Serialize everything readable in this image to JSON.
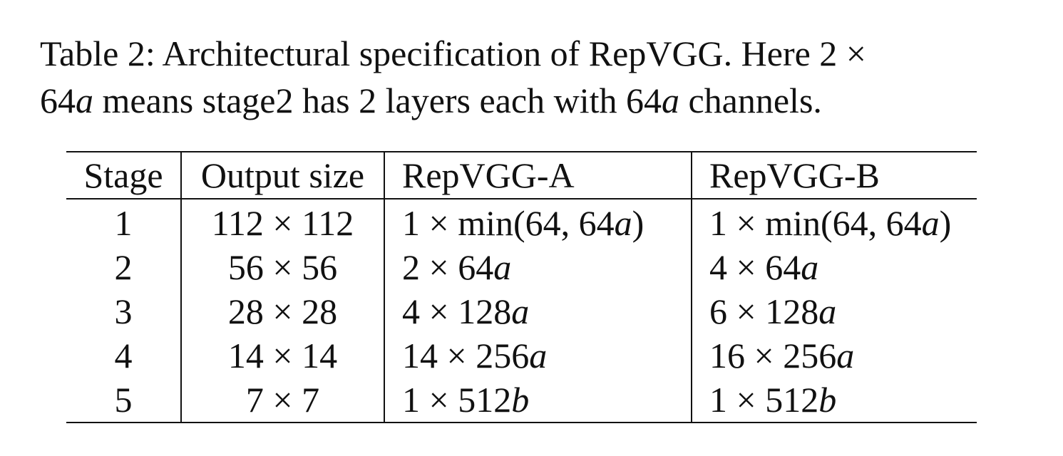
{
  "caption": {
    "line1": "Table 2: Architectural specification of RepVGG. Here 2 ×",
    "line2": "64a means stage2 has 2 layers each with 64a channels."
  },
  "table": {
    "headers": [
      "Stage",
      "Output size",
      "RepVGG-A",
      "RepVGG-B"
    ],
    "rows": [
      {
        "stage": "1",
        "output_size": "112 × 112",
        "repvgg_a": "1 × min(64, 64a)",
        "repvgg_b": "1 × min(64, 64a)"
      },
      {
        "stage": "2",
        "output_size": "56 × 56",
        "repvgg_a": "2 × 64a",
        "repvgg_b": "4 × 64a"
      },
      {
        "stage": "3",
        "output_size": "28 × 28",
        "repvgg_a": "4 × 128a",
        "repvgg_b": "6 × 128a"
      },
      {
        "stage": "4",
        "output_size": "14 × 14",
        "repvgg_a": "14 × 256a",
        "repvgg_b": "16 × 256a"
      },
      {
        "stage": "5",
        "output_size": "7 × 7",
        "repvgg_a": "1 × 512b",
        "repvgg_b": "1 × 512b"
      }
    ]
  }
}
